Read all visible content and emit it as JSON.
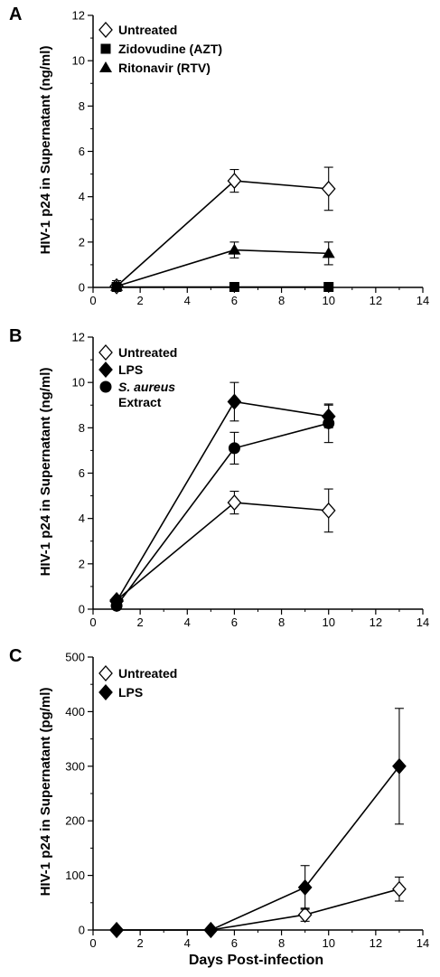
{
  "chart_data": [
    {
      "panel": "A",
      "type": "line",
      "ylabel": "HIV-1 p24 in Supernatant (ng/ml)",
      "xlabel": "",
      "xlim": [
        0,
        14
      ],
      "ylim": [
        0,
        12
      ],
      "xticks": [
        "0",
        "2",
        "4",
        "6",
        "8",
        "10",
        "12",
        "14"
      ],
      "yticks": [
        "0",
        "2",
        "4",
        "6",
        "8",
        "10",
        "12"
      ],
      "legend_position": "top-left",
      "series": [
        {
          "name": "Untreated",
          "marker": "diamond-open",
          "x": [
            1,
            6,
            10
          ],
          "y": [
            0.05,
            4.7,
            4.35
          ],
          "err": [
            0.25,
            0.5,
            0.95
          ]
        },
        {
          "name": "Zidovudine (AZT)",
          "marker": "square",
          "x": [
            1,
            6,
            10
          ],
          "y": [
            0.02,
            0.02,
            0.02
          ],
          "err": [
            0,
            0,
            0
          ]
        },
        {
          "name": "Ritonavir (RTV)",
          "marker": "triangle",
          "x": [
            1,
            6,
            10
          ],
          "y": [
            0.05,
            1.65,
            1.5
          ],
          "err": [
            0,
            0.35,
            0.5
          ]
        }
      ]
    },
    {
      "panel": "B",
      "type": "line",
      "ylabel": "HIV-1 p24 in Supernatant (ng/ml)",
      "xlabel": "",
      "xlim": [
        0,
        14
      ],
      "ylim": [
        0,
        12
      ],
      "xticks": [
        "0",
        "2",
        "4",
        "6",
        "8",
        "10",
        "12",
        "14"
      ],
      "yticks": [
        "0",
        "2",
        "4",
        "6",
        "8",
        "10",
        "12"
      ],
      "legend_position": "top-left",
      "series": [
        {
          "name": "Untreated",
          "marker": "diamond-open",
          "x": [
            1,
            6,
            10
          ],
          "y": [
            0.4,
            4.7,
            4.35
          ],
          "err": [
            0,
            0.5,
            0.95
          ]
        },
        {
          "name": "LPS",
          "marker": "diamond",
          "x": [
            1,
            6,
            10
          ],
          "y": [
            0.35,
            9.15,
            8.5
          ],
          "err": [
            0,
            0.85,
            0.5
          ]
        },
        {
          "name": "S. aureus Extract",
          "marker": "circle",
          "x": [
            1,
            6,
            10
          ],
          "y": [
            0.15,
            7.1,
            8.2
          ],
          "err": [
            0,
            0.7,
            0.85
          ]
        }
      ]
    },
    {
      "panel": "C",
      "type": "line",
      "ylabel": "HIV-1 p24 in Supernatant (pg/ml)",
      "xlabel": "Days Post-infection",
      "xlim": [
        0,
        14
      ],
      "ylim": [
        0,
        500
      ],
      "xticks": [
        "0",
        "2",
        "4",
        "6",
        "8",
        "10",
        "12",
        "14"
      ],
      "yticks": [
        "0",
        "100",
        "200",
        "300",
        "400",
        "500"
      ],
      "legend_position": "top-left",
      "series": [
        {
          "name": "Untreated",
          "marker": "diamond-open",
          "x": [
            1,
            5,
            9,
            13
          ],
          "y": [
            0,
            0,
            28,
            75
          ],
          "err": [
            0,
            0,
            12,
            22
          ]
        },
        {
          "name": "LPS",
          "marker": "diamond",
          "x": [
            1,
            5,
            9,
            13
          ],
          "y": [
            0,
            0,
            78,
            300
          ],
          "err": [
            0,
            0,
            40,
            106
          ]
        }
      ]
    }
  ],
  "legend_text": {
    "panel_B_s_aureus_line1_italic": "S. aureus",
    "panel_B_s_aureus_line2": "Extract"
  }
}
